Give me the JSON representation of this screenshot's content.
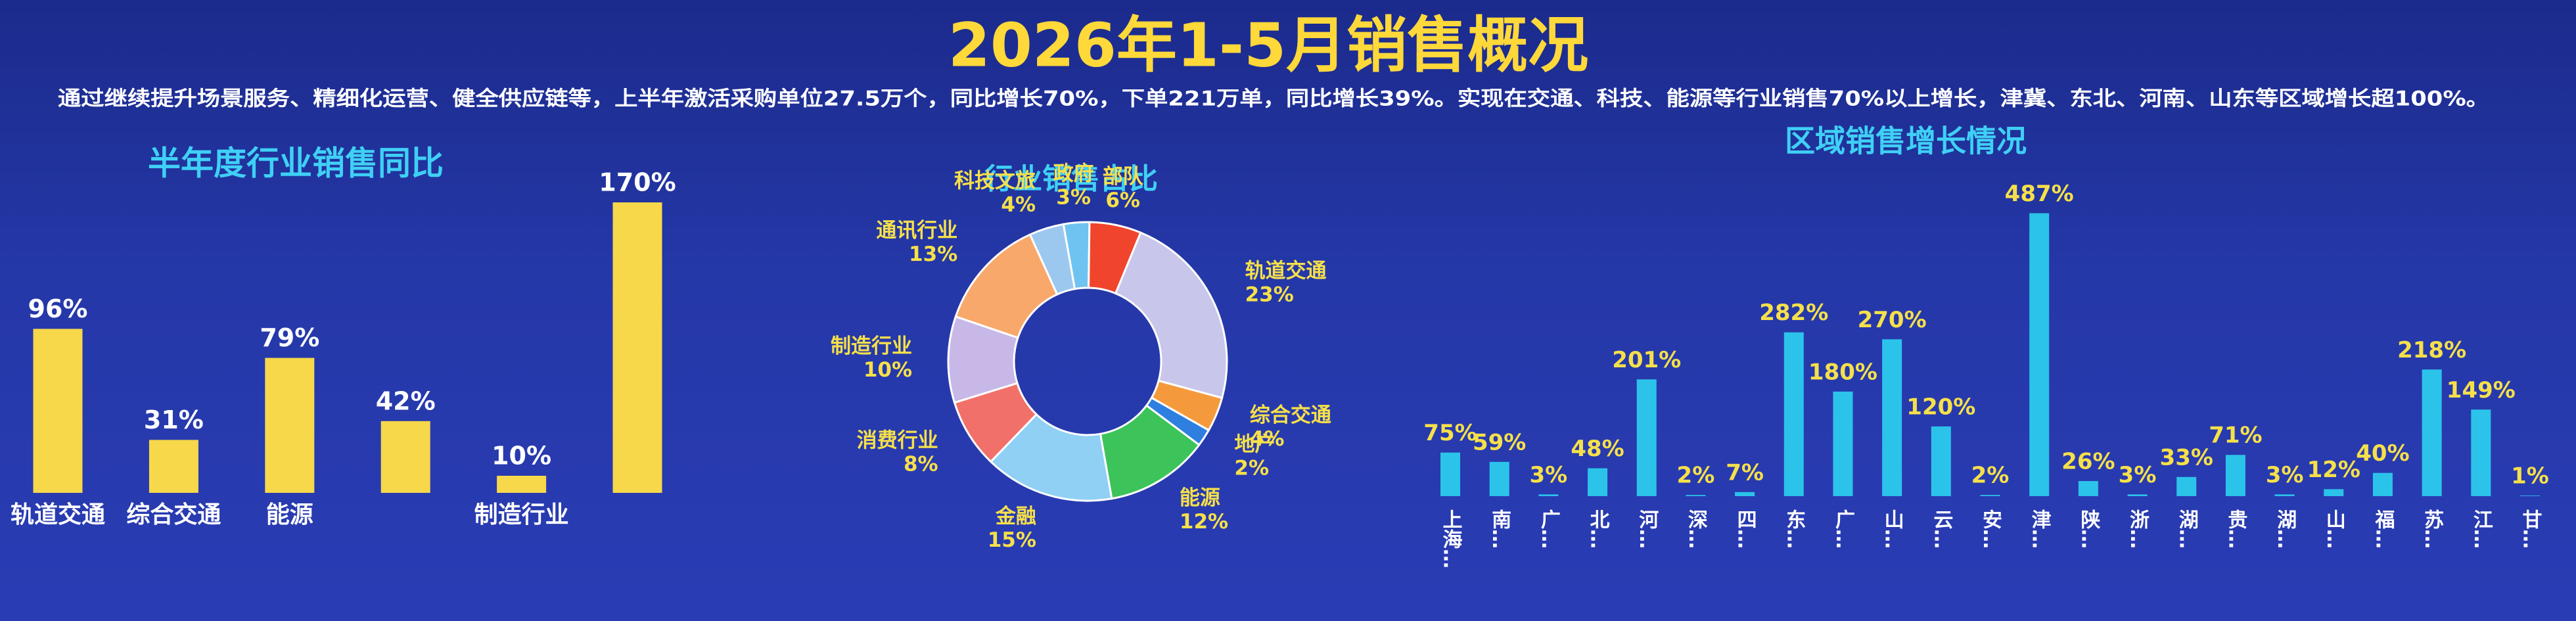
{
  "title": "2026年1-5月销售概况",
  "subtitle": "通过继续提升场景服务、精细化运营、健全供应链等，上半年激活采购单位27.5万个，同比增长70%，下单221万单，同比增长39%。实现在交通、科技、能源等行业销售70%以上增长，津冀、东北、河南、山东等区域增长超100%。",
  "chart_data": [
    {
      "type": "bar",
      "title": "半年度行业销售同比",
      "categories": [
        "轨道交通",
        "综合交通",
        "能源",
        null,
        "制造行业",
        null
      ],
      "values": [
        96,
        31,
        79,
        42,
        10,
        170
      ],
      "value_labels": [
        "96%",
        "31%",
        "79%",
        "42%",
        "10%",
        "170%"
      ],
      "color": "#f6d84a",
      "ylim": [
        0,
        180
      ]
    },
    {
      "type": "pie",
      "title": "行业销售占比",
      "donut": true,
      "categories": [
        "政府",
        "部队",
        "轨道交通",
        "综合交通",
        "地产",
        "能源",
        "金融",
        "消费行业",
        "制造行业",
        "通讯行业",
        "科技文旅"
      ],
      "values": [
        3,
        6,
        23,
        4,
        2,
        12,
        15,
        8,
        10,
        13,
        4
      ],
      "value_labels": [
        "3%",
        "6%",
        "23%",
        "4%",
        "2%",
        "12%",
        "15%",
        "8%",
        "10%",
        "13%",
        "4%"
      ],
      "colors": [
        "#6fc3f0",
        "#f0442c",
        "#c9c6ec",
        "#f59a3c",
        "#2f7fe0",
        "#3cc35a",
        "#8fd0f4",
        "#f2706a",
        "#c8b8e8",
        "#f8a86a",
        "#9cc8f0"
      ]
    },
    {
      "type": "bar",
      "title": "区域销售增长情况",
      "categories": [
        "上海…",
        "南…",
        "广…",
        "北…",
        "河…",
        "深…",
        "四…",
        "东…",
        "广…",
        "山…",
        "云…",
        "安…",
        "津…",
        "陕…",
        "浙…",
        "湖…",
        "贵…",
        "湖…",
        "山…",
        "福…",
        "苏…",
        "江…",
        "甘…"
      ],
      "values": [
        75,
        59,
        3,
        48,
        201,
        2,
        7,
        282,
        180,
        270,
        120,
        2,
        487,
        26,
        3,
        33,
        71,
        3,
        12,
        40,
        218,
        149,
        1
      ],
      "value_labels": [
        "75%",
        "59%",
        "3%",
        "48%",
        "201%",
        "2%",
        "7%",
        "282%",
        "180%",
        "270%",
        "120%",
        "2%",
        "487%",
        "26%",
        "3%",
        "33%",
        "71%",
        "3%",
        "12%",
        "40%",
        "218%",
        "149%",
        "1%"
      ],
      "color": "#2cc3ea",
      "ylim": [
        0,
        500
      ]
    }
  ]
}
